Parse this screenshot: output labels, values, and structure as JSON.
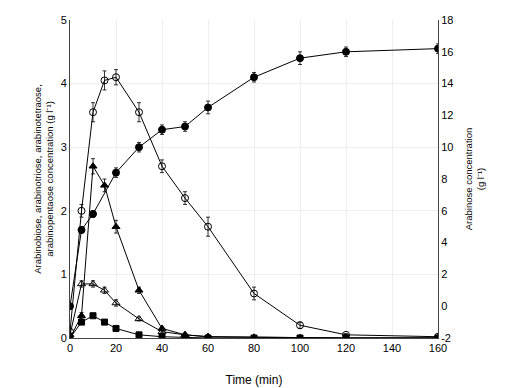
{
  "chart_data": {
    "type": "line",
    "xlabel": "Time (min)",
    "ylabel": "Arabinobiose, arabinotriose, arabinotetraose,\narabinopentaose concentration (g l⁻¹)",
    "y2label": "Arabinose concentration\n(g l⁻¹)",
    "xlim": [
      0,
      160
    ],
    "xticks": [
      0,
      20,
      40,
      60,
      80,
      100,
      120,
      140,
      160
    ],
    "ylim": [
      0,
      5
    ],
    "yticks": [
      0,
      1,
      2,
      3,
      4,
      5
    ],
    "y2lim": [
      -2,
      18
    ],
    "y2ticks": [
      -2,
      0,
      2,
      4,
      6,
      8,
      10,
      12,
      14,
      16,
      18
    ],
    "series": [
      {
        "axis": "y2",
        "color": "black",
        "marker": "circle",
        "line_style": "solid",
        "x": [
          0,
          5,
          10,
          20,
          30,
          40,
          50,
          60,
          80,
          100,
          120,
          160
        ],
        "values": [
          0.0,
          4.8,
          5.8,
          8.4,
          10.0,
          11.1,
          11.3,
          12.5,
          14.4,
          15.6,
          16.0,
          16.2
        ],
        "errors": [
          0.1,
          0.2,
          0.2,
          0.3,
          0.3,
          0.3,
          0.3,
          0.4,
          0.3,
          0.4,
          0.3,
          0.3
        ]
      },
      {
        "axis": "y",
        "color": "black",
        "marker": "circle-open",
        "line_style": "solid",
        "x": [
          0,
          5,
          10,
          15,
          20,
          30,
          40,
          50,
          60,
          80,
          100,
          120,
          160
        ],
        "values": [
          0.1,
          2.0,
          3.55,
          4.05,
          4.1,
          3.55,
          2.7,
          2.2,
          1.75,
          0.7,
          0.2,
          0.05,
          0.02
        ],
        "errors": [
          0.05,
          0.1,
          0.15,
          0.15,
          0.12,
          0.15,
          0.1,
          0.1,
          0.15,
          0.1,
          0.05,
          0.02,
          0.01
        ]
      },
      {
        "axis": "y",
        "color": "black",
        "marker": "triangle-up",
        "line_style": "solid",
        "x": [
          0,
          5,
          10,
          15,
          20,
          30,
          40,
          50,
          60,
          80,
          100,
          120,
          160
        ],
        "values": [
          0.0,
          0.35,
          2.7,
          2.4,
          1.75,
          0.75,
          0.15,
          0.05,
          0.02,
          0.01,
          0.0,
          0.0,
          0.0
        ],
        "errors": [
          0.0,
          0.05,
          0.12,
          0.1,
          0.1,
          0.05,
          0.02,
          0.01,
          0.0,
          0.0,
          0.0,
          0.0,
          0.0
        ]
      },
      {
        "axis": "y",
        "color": "black",
        "marker": "triangle-up-open",
        "line_style": "solid",
        "x": [
          0,
          5,
          10,
          15,
          20,
          30,
          40,
          50,
          60,
          80,
          100,
          120,
          160
        ],
        "values": [
          0.05,
          0.85,
          0.85,
          0.75,
          0.55,
          0.3,
          0.1,
          0.05,
          0.02,
          0.01,
          0.0,
          0.0,
          0.0
        ],
        "errors": [
          0.02,
          0.05,
          0.05,
          0.05,
          0.05,
          0.03,
          0.02,
          0.01,
          0.01,
          0.0,
          0.0,
          0.0,
          0.0
        ]
      },
      {
        "axis": "y",
        "color": "black",
        "marker": "square",
        "line_style": "solid",
        "x": [
          0,
          5,
          10,
          15,
          20,
          30,
          40,
          50,
          60,
          80,
          100,
          120,
          160
        ],
        "values": [
          0.0,
          0.25,
          0.35,
          0.25,
          0.15,
          0.05,
          0.02,
          0.01,
          0.0,
          0.0,
          0.0,
          0.0,
          0.0
        ],
        "errors": [
          0.0,
          0.02,
          0.03,
          0.02,
          0.01,
          0.01,
          0.0,
          0.0,
          0.0,
          0.0,
          0.0,
          0.0,
          0.0
        ]
      }
    ]
  }
}
